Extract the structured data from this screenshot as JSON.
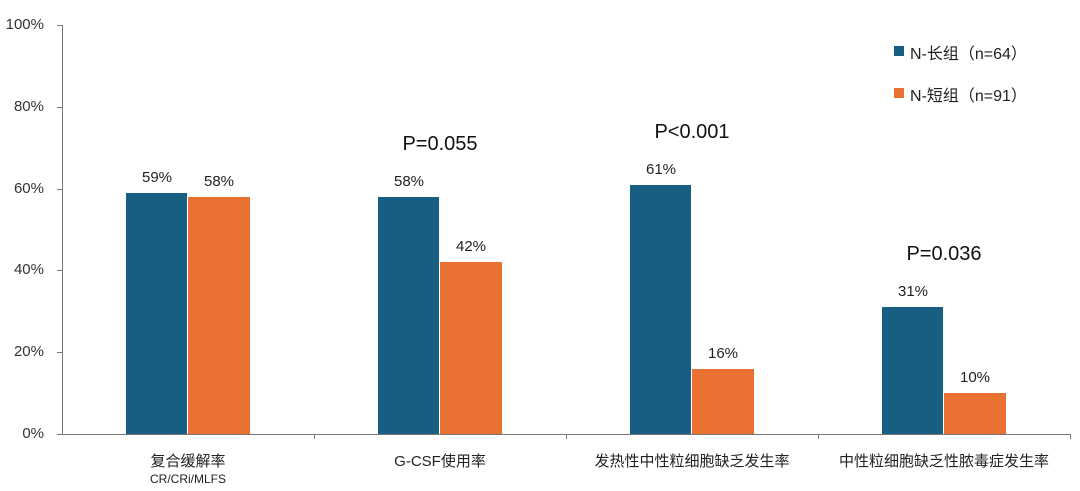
{
  "chart_data": {
    "type": "bar",
    "title": "",
    "xlabel": "",
    "ylabel": "",
    "ylim": [
      0,
      100
    ],
    "y_ticks": [
      "0%",
      "20%",
      "40%",
      "60%",
      "80%",
      "100%"
    ],
    "grid": false,
    "legend_position": "top-right",
    "categories": [
      "复合缓解率",
      "G-CSF使用率",
      "发热性中性粒细胞缺乏发生率",
      "中性粒细胞缺乏性脓毒症发生率"
    ],
    "category_sublabels": [
      "CR/CRi/MLFS",
      "",
      "",
      ""
    ],
    "series": [
      {
        "name": "N-长组（n=64）",
        "color": "#175e82",
        "values": [
          59,
          58,
          61,
          31
        ],
        "labels": [
          "59%",
          "58%",
          "61%",
          "31%"
        ]
      },
      {
        "name": "N-短组（n=91）",
        "color": "#e97132",
        "values": [
          58,
          42,
          16,
          10
        ],
        "labels": [
          "58%",
          "42%",
          "16%",
          "10%"
        ]
      }
    ],
    "annotations": [
      {
        "category_index": 1,
        "text": "P=0.055"
      },
      {
        "category_index": 2,
        "text": "P<0.001"
      },
      {
        "category_index": 3,
        "text": "P=0.036"
      }
    ]
  }
}
